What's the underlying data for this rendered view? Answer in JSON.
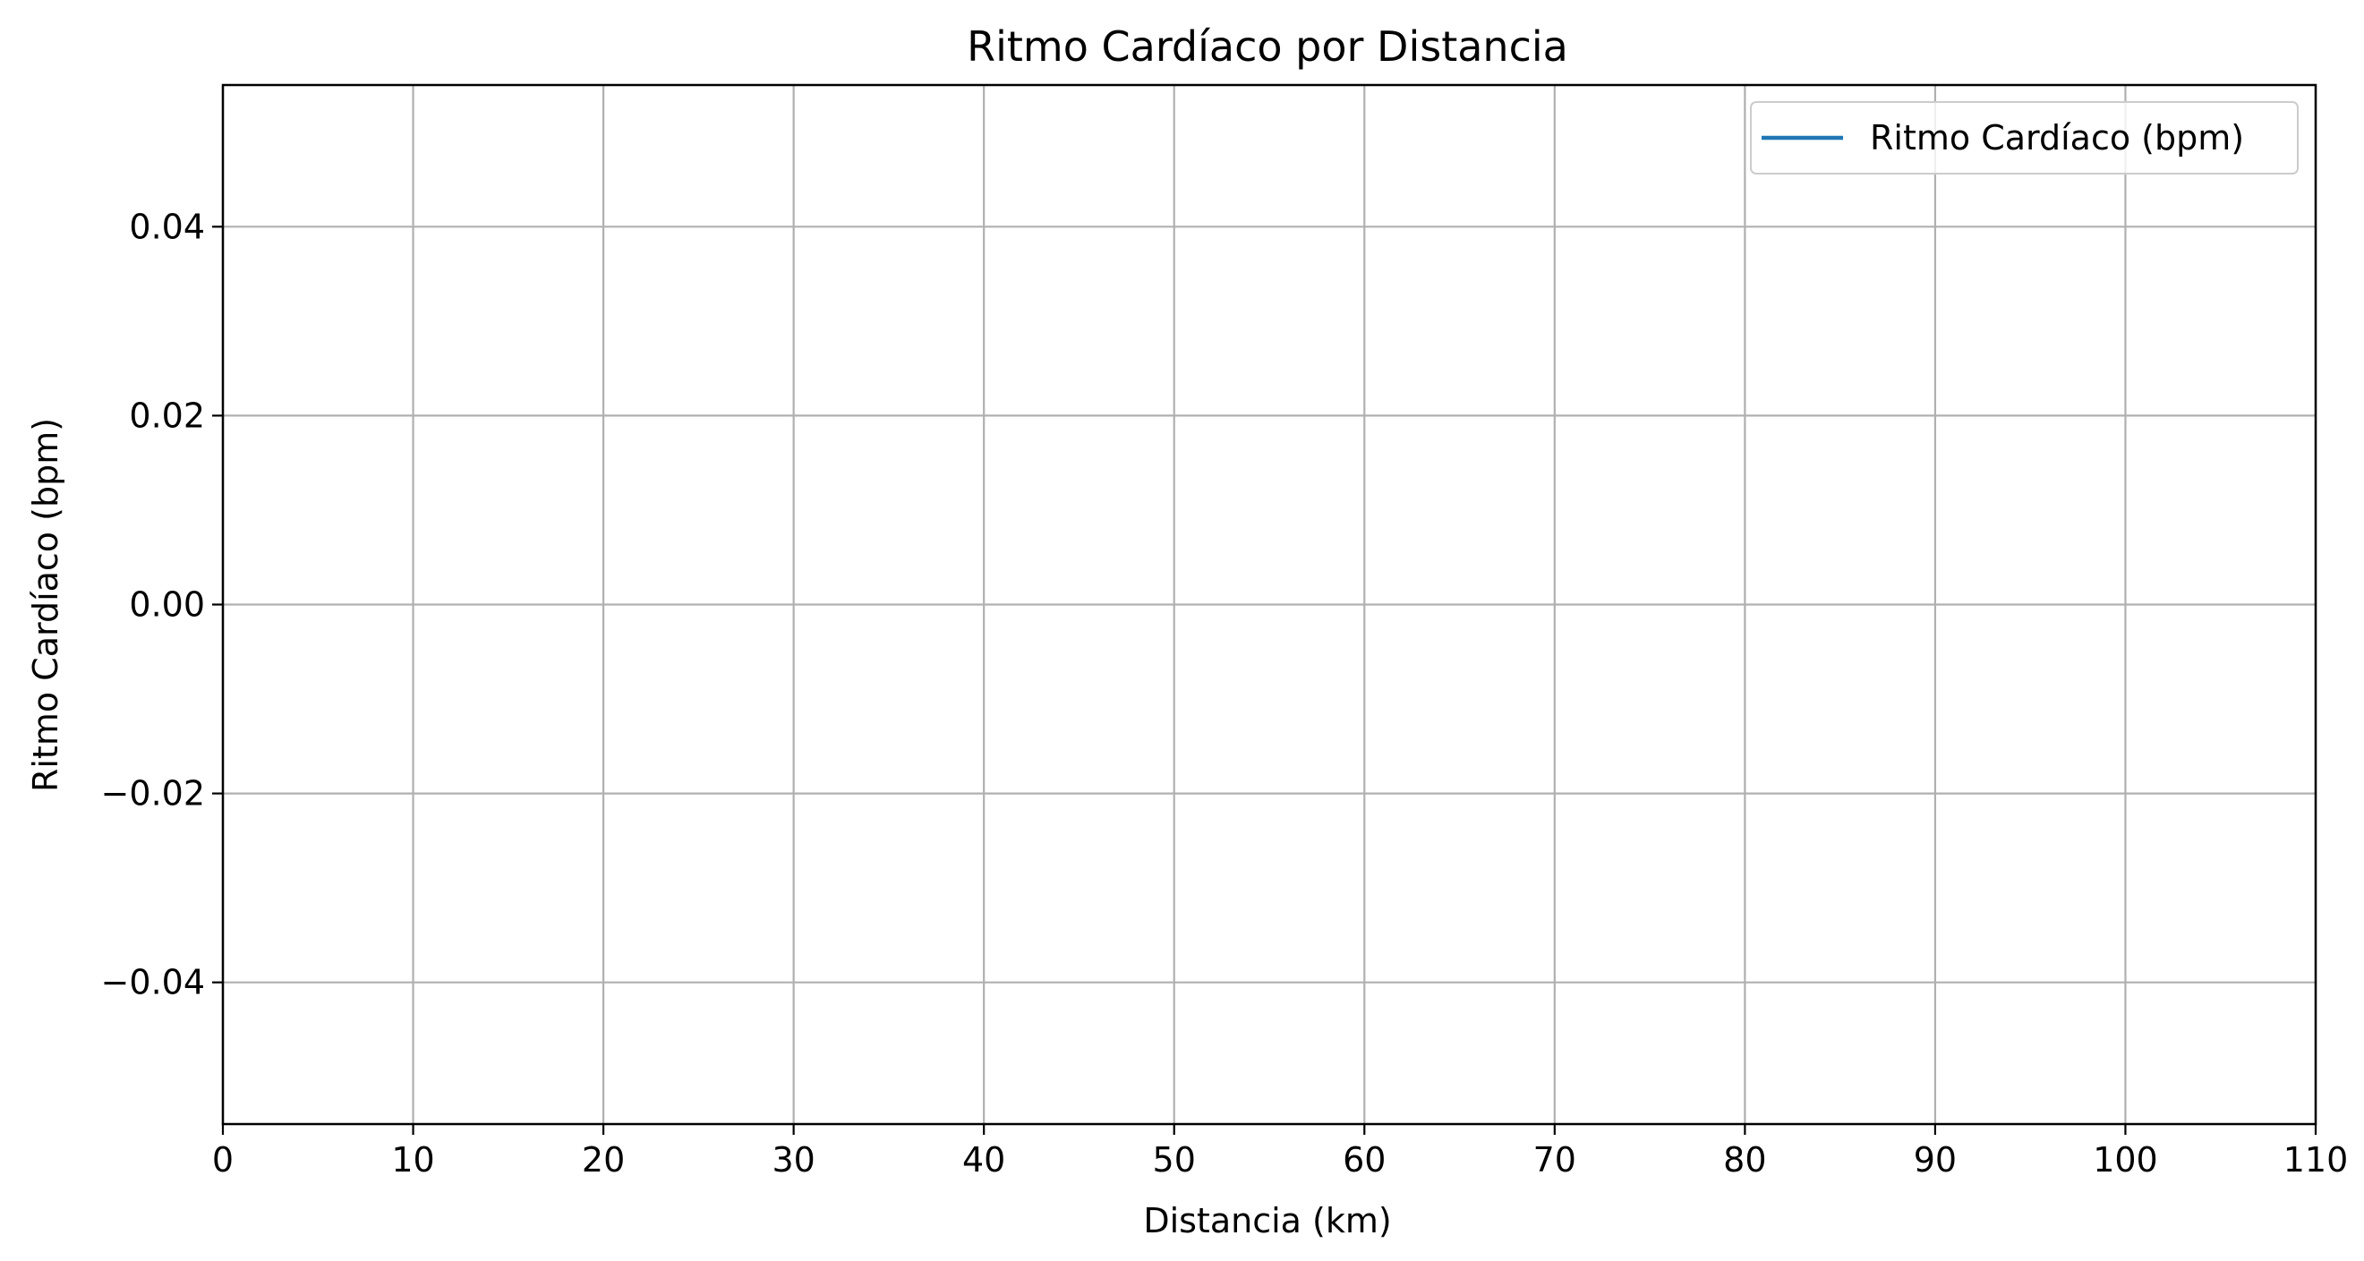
{
  "chart_data": {
    "type": "line",
    "title": "Ritmo Cardíaco por Distancia",
    "xlabel": "Distancia (km)",
    "ylabel": "Ritmo Cardíaco (bpm)",
    "xlim": [
      0,
      110
    ],
    "ylim": [
      -0.055,
      0.055
    ],
    "x_ticks": [
      0,
      10,
      20,
      30,
      40,
      50,
      60,
      70,
      80,
      90,
      100,
      110
    ],
    "x_tick_labels": [
      "0",
      "10",
      "20",
      "30",
      "40",
      "50",
      "60",
      "70",
      "80",
      "90",
      "100",
      "110"
    ],
    "y_ticks": [
      -0.04,
      -0.02,
      0,
      0.02,
      0.04
    ],
    "y_tick_labels": [
      "−0.04",
      "−0.02",
      "0.00",
      "0.02",
      "0.04"
    ],
    "grid": true,
    "legend_position": "top-right",
    "series": [
      {
        "name": "Ritmo Cardíaco (bpm)",
        "color": "#1f77b4",
        "x": [],
        "y": []
      }
    ]
  }
}
